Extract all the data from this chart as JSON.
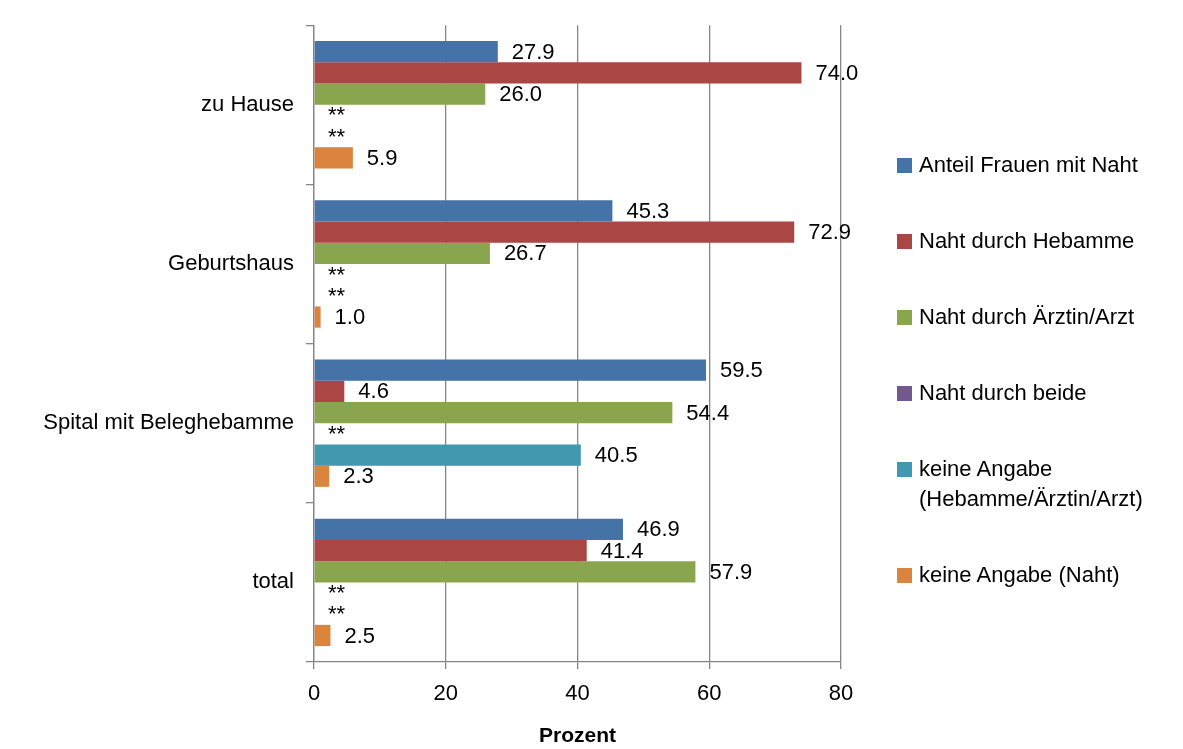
{
  "chart_data": {
    "type": "bar",
    "orientation": "horizontal",
    "categories": [
      "zu Hause",
      "Geburtshaus",
      "Spital mit Beleghebamme",
      "total"
    ],
    "xlabel": "Prozent",
    "xlim": [
      0,
      80
    ],
    "xticks": [
      0,
      20,
      40,
      60,
      80
    ],
    "grid": "x",
    "legend": "right",
    "series": [
      {
        "name": "Anteil Frauen mit Naht",
        "color": "#4572a7",
        "values": [
          27.9,
          45.3,
          59.5,
          46.9
        ],
        "value_labels": [
          "27.9",
          "45.3",
          "59.5",
          "46.9"
        ]
      },
      {
        "name": "Naht durch Hebamme",
        "color": "#aa4643",
        "values": [
          74.0,
          72.9,
          4.6,
          41.4
        ],
        "value_labels": [
          "74.0",
          "72.9",
          "4.6",
          "41.4"
        ]
      },
      {
        "name": "Naht durch Ärztin/Arzt",
        "color": "#89a54e",
        "values": [
          26.0,
          26.7,
          54.4,
          57.9
        ],
        "value_labels": [
          "26.0",
          "26.7",
          "54.4",
          "57.9"
        ]
      },
      {
        "name": "Naht durch beide",
        "color": "#71588f",
        "values": [
          null,
          null,
          null,
          null
        ],
        "value_labels": [
          "**",
          "**",
          "**",
          "**"
        ]
      },
      {
        "name": "keine Angabe (Hebamme/Ärztin/Arzt)",
        "color": "#4198af",
        "values": [
          null,
          null,
          40.5,
          null
        ],
        "value_labels": [
          "**",
          "**",
          "40.5",
          "**"
        ]
      },
      {
        "name": "keine Angabe (Naht)",
        "color": "#db843d",
        "values": [
          5.9,
          1.0,
          2.3,
          2.5
        ],
        "value_labels": [
          "5.9",
          "1.0",
          "2.3",
          "2.5"
        ]
      }
    ]
  }
}
